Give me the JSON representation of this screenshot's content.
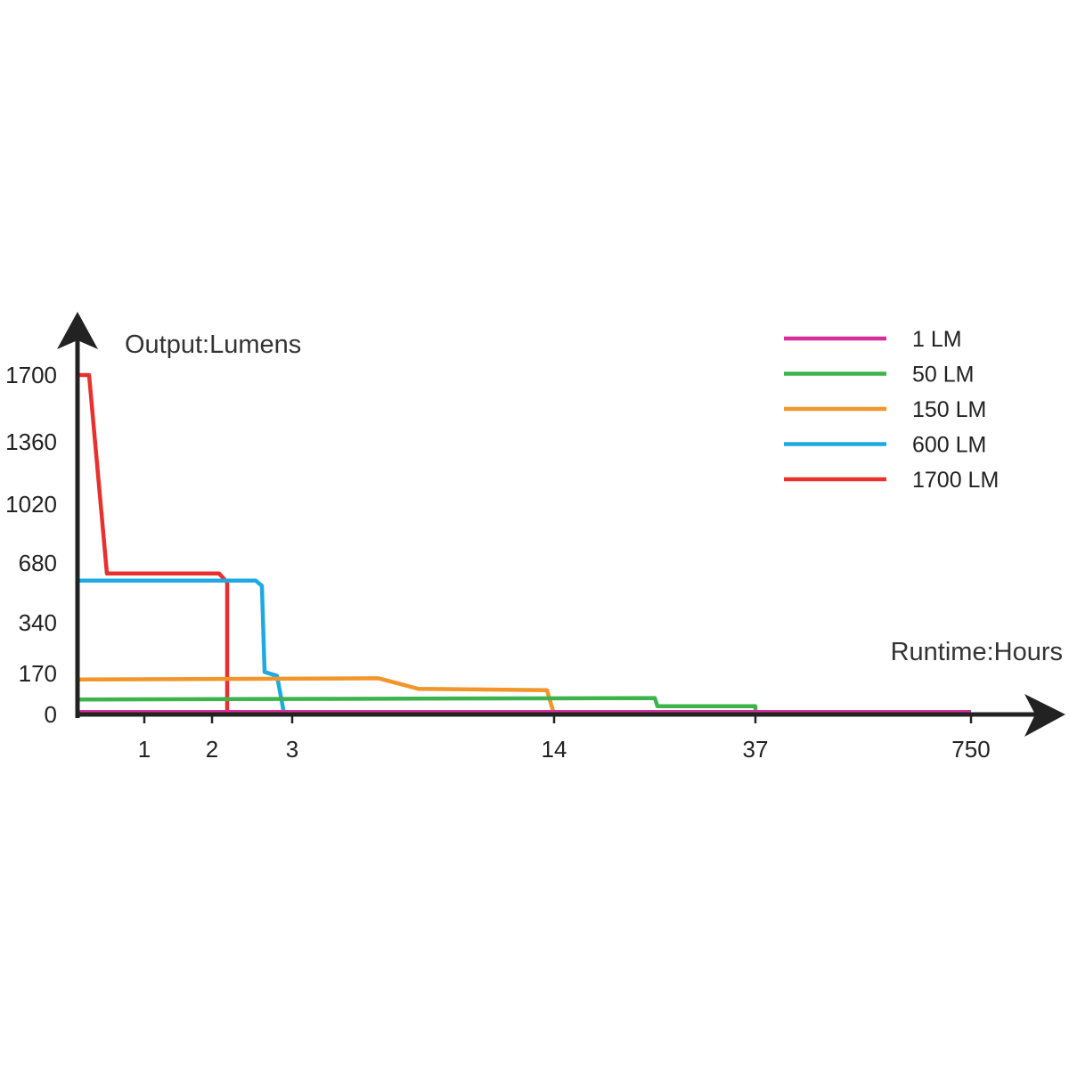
{
  "chart_data": {
    "type": "line",
    "ylabel": "Output:Lumens",
    "xlabel": "Runtime:Hours",
    "y_ticks": [
      "0",
      "170",
      "340",
      "680",
      "1020",
      "1360",
      "1700"
    ],
    "x_ticks": [
      "1",
      "2",
      "3",
      "14",
      "37",
      "750"
    ],
    "legend_position": "top-right",
    "grid": false,
    "series": [
      {
        "name": "1 LM",
        "color": "#d62e9a",
        "points": [
          [
            "0",
            10
          ],
          [
            "750",
            10
          ]
        ]
      },
      {
        "name": "50 LM",
        "color": "#3cb44b",
        "points": [
          [
            "0",
            62
          ],
          [
            "30",
            68
          ],
          [
            "31",
            34
          ],
          [
            "37",
            34
          ],
          [
            "37",
            0
          ]
        ]
      },
      {
        "name": "150 LM",
        "color": "#f0962a",
        "points": [
          [
            "0",
            145
          ],
          [
            "6",
            150
          ],
          [
            "8",
            106
          ],
          [
            "13",
            101
          ],
          [
            "14",
            0
          ]
        ]
      },
      {
        "name": "600 LM",
        "color": "#1fa9e1",
        "points": [
          [
            "0",
            580
          ],
          [
            "2.6",
            580
          ],
          [
            "2.7",
            550
          ],
          [
            "2.75",
            175
          ],
          [
            "2.85",
            160
          ],
          [
            "2.9",
            0
          ]
        ]
      },
      {
        "name": "1700 LM",
        "color": "#e8312e",
        "points": [
          [
            "0",
            1700
          ],
          [
            "0.1",
            1700
          ],
          [
            "0.35",
            620
          ],
          [
            "2.1",
            620
          ],
          [
            "2.2",
            570
          ],
          [
            "2.2",
            0
          ]
        ]
      }
    ]
  }
}
